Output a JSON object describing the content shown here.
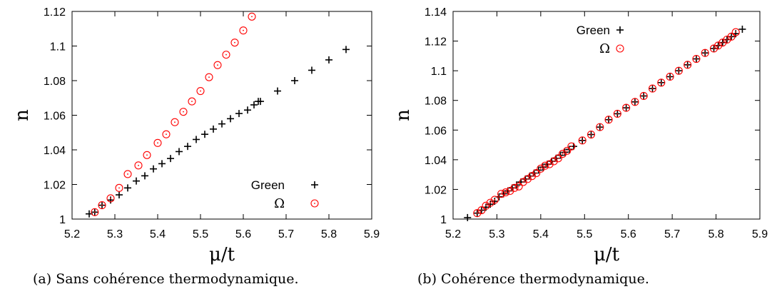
{
  "captions": {
    "a": "(a) Sans cohérence thermodynamique.",
    "b": "(b) Cohérence thermodynamique."
  },
  "colors": {
    "green_series": "#000000",
    "omega_series": "#ff0000"
  },
  "chart_data": [
    {
      "type": "scatter",
      "xlabel": "μ/t",
      "ylabel": "n",
      "xlim": [
        5.2,
        5.9
      ],
      "ylim": [
        1.0,
        1.12
      ],
      "xticks": [
        5.2,
        5.3,
        5.4,
        5.5,
        5.6,
        5.7,
        5.8,
        5.9
      ],
      "yticks": [
        1.0,
        1.02,
        1.04,
        1.06,
        1.08,
        1.1,
        1.12
      ],
      "xtick_labels": [
        "5.2",
        "5.3",
        "5.4",
        "5.5",
        "5.6",
        "5.7",
        "5.8",
        "5.9"
      ],
      "ytick_labels": [
        "1",
        "1.02",
        "1.04",
        "1.06",
        "1.08",
        "1.1",
        "1.12"
      ],
      "grid": false,
      "legend_position": "bottom-right",
      "series": [
        {
          "name": "Green",
          "marker": "plus",
          "color": "#000000",
          "x": [
            5.24,
            5.253,
            5.27,
            5.29,
            5.31,
            5.33,
            5.35,
            5.37,
            5.39,
            5.41,
            5.43,
            5.45,
            5.47,
            5.49,
            5.51,
            5.53,
            5.55,
            5.57,
            5.59,
            5.61,
            5.625,
            5.635,
            5.64,
            5.68,
            5.72,
            5.76,
            5.8,
            5.84
          ],
          "y": [
            1.003,
            1.004,
            1.008,
            1.011,
            1.014,
            1.018,
            1.022,
            1.025,
            1.029,
            1.032,
            1.035,
            1.039,
            1.042,
            1.046,
            1.049,
            1.052,
            1.055,
            1.058,
            1.061,
            1.063,
            1.066,
            1.068,
            1.068,
            1.074,
            1.08,
            1.086,
            1.092,
            1.098
          ]
        },
        {
          "name": "Ω",
          "marker": "circle",
          "color": "#ff0000",
          "x": [
            5.253,
            5.27,
            5.29,
            5.31,
            5.33,
            5.355,
            5.375,
            5.4,
            5.42,
            5.44,
            5.46,
            5.48,
            5.5,
            5.52,
            5.54,
            5.56,
            5.58,
            5.6,
            5.62
          ],
          "y": [
            1.004,
            1.008,
            1.012,
            1.018,
            1.026,
            1.031,
            1.037,
            1.044,
            1.049,
            1.056,
            1.062,
            1.068,
            1.074,
            1.082,
            1.089,
            1.095,
            1.102,
            1.109,
            1.117
          ]
        }
      ]
    },
    {
      "type": "scatter",
      "xlabel": "μ/t",
      "ylabel": "n",
      "xlim": [
        5.2,
        5.9
      ],
      "ylim": [
        1.0,
        1.14
      ],
      "xticks": [
        5.2,
        5.3,
        5.4,
        5.5,
        5.6,
        5.7,
        5.8,
        5.9
      ],
      "yticks": [
        1.0,
        1.02,
        1.04,
        1.06,
        1.08,
        1.1,
        1.12,
        1.14
      ],
      "xtick_labels": [
        "5.2",
        "5.3",
        "5.4",
        "5.5",
        "5.6",
        "5.7",
        "5.8",
        "5.9"
      ],
      "ytick_labels": [
        "1",
        "1.02",
        "1.04",
        "1.06",
        "1.08",
        "1.1",
        "1.12",
        "1.14"
      ],
      "grid": false,
      "legend_position": "top-center",
      "series": [
        {
          "name": "Green",
          "marker": "plus",
          "color": "#000000",
          "x": [
            5.233,
            5.255,
            5.265,
            5.275,
            5.285,
            5.295,
            5.305,
            5.315,
            5.325,
            5.335,
            5.345,
            5.355,
            5.365,
            5.375,
            5.385,
            5.395,
            5.405,
            5.415,
            5.425,
            5.435,
            5.445,
            5.455,
            5.465,
            5.475,
            5.495,
            5.515,
            5.535,
            5.555,
            5.575,
            5.595,
            5.615,
            5.635,
            5.655,
            5.675,
            5.695,
            5.715,
            5.735,
            5.755,
            5.775,
            5.795,
            5.805,
            5.815,
            5.825,
            5.835,
            5.845,
            5.86
          ],
          "y": [
            1.001,
            1.004,
            1.006,
            1.008,
            1.01,
            1.012,
            1.015,
            1.017,
            1.019,
            1.021,
            1.023,
            1.025,
            1.027,
            1.029,
            1.031,
            1.033,
            1.035,
            1.037,
            1.039,
            1.041,
            1.043,
            1.045,
            1.047,
            1.049,
            1.053,
            1.057,
            1.062,
            1.067,
            1.071,
            1.075,
            1.079,
            1.083,
            1.088,
            1.092,
            1.096,
            1.1,
            1.104,
            1.108,
            1.112,
            1.115,
            1.117,
            1.119,
            1.121,
            1.123,
            1.125,
            1.128
          ]
        },
        {
          "name": "Ω",
          "marker": "circle",
          "color": "#ff0000",
          "x": [
            5.255,
            5.265,
            5.275,
            5.285,
            5.295,
            5.31,
            5.32,
            5.33,
            5.34,
            5.35,
            5.36,
            5.37,
            5.38,
            5.39,
            5.4,
            5.41,
            5.42,
            5.43,
            5.44,
            5.45,
            5.46,
            5.47,
            5.495,
            5.515,
            5.535,
            5.555,
            5.575,
            5.595,
            5.615,
            5.635,
            5.655,
            5.675,
            5.695,
            5.715,
            5.735,
            5.755,
            5.775,
            5.795,
            5.805,
            5.815,
            5.825,
            5.835,
            5.845
          ],
          "y": [
            1.004,
            1.006,
            1.009,
            1.011,
            1.013,
            1.017,
            1.018,
            1.019,
            1.021,
            1.022,
            1.025,
            1.027,
            1.029,
            1.031,
            1.034,
            1.036,
            1.037,
            1.039,
            1.041,
            1.044,
            1.046,
            1.049,
            1.053,
            1.057,
            1.062,
            1.067,
            1.071,
            1.075,
            1.079,
            1.083,
            1.088,
            1.092,
            1.096,
            1.1,
            1.104,
            1.108,
            1.112,
            1.115,
            1.117,
            1.119,
            1.121,
            1.123,
            1.126
          ]
        }
      ]
    }
  ]
}
